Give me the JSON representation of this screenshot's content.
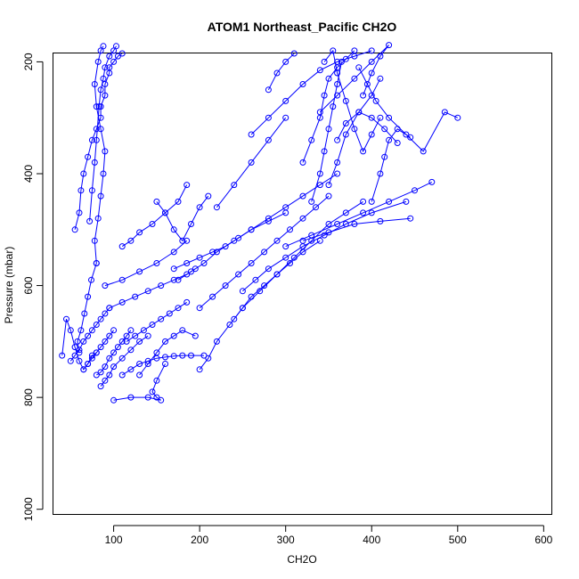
{
  "chart_data": {
    "type": "line",
    "title": "ATOM1 Northeast_Pacific CH2O",
    "xlabel": "CH2O",
    "ylabel": "Pressure (mbar)",
    "xlim": [
      30,
      610
    ],
    "ylim": [
      1010,
      185
    ],
    "x_ticks": [
      100,
      200,
      300,
      400,
      500,
      600
    ],
    "y_ticks": [
      200,
      400,
      600,
      800,
      1000
    ],
    "color": "#0000ff",
    "marker": "open-circle",
    "grid": false,
    "series": [
      {
        "x": [
          55,
          60,
          62,
          65,
          70,
          75,
          80,
          85,
          85,
          90,
          90,
          95,
          95,
          100,
          105,
          110
        ],
        "y": [
          500,
          470,
          430,
          400,
          370,
          340,
          320,
          300,
          280,
          260,
          240,
          220,
          210,
          200,
          190,
          185
        ]
      },
      {
        "x": [
          72,
          75,
          78,
          80,
          83,
          85,
          88,
          90,
          95,
          100,
          103
        ],
        "y": [
          485,
          430,
          380,
          340,
          280,
          250,
          230,
          210,
          190,
          180,
          172
        ]
      },
      {
        "x": [
          80,
          78,
          82,
          85,
          88,
          90,
          85,
          80,
          78,
          82,
          85,
          88
        ],
        "y": [
          560,
          520,
          480,
          440,
          400,
          360,
          320,
          280,
          240,
          200,
          180,
          172
        ]
      },
      {
        "x": [
          60,
          58,
          62,
          66,
          70,
          74,
          80
        ],
        "y": [
          720,
          700,
          680,
          650,
          620,
          590,
          560
        ]
      },
      {
        "x": [
          40,
          45,
          50,
          55,
          60,
          65,
          70,
          75,
          80
        ],
        "y": [
          725,
          660,
          680,
          710,
          735,
          750,
          740,
          725,
          720
        ]
      },
      {
        "x": [
          50,
          55,
          60,
          65,
          70,
          75,
          80,
          85,
          90,
          95
        ],
        "y": [
          735,
          725,
          715,
          700,
          690,
          680,
          670,
          660,
          650,
          640
        ]
      },
      {
        "x": [
          65,
          70,
          75,
          80,
          85,
          90,
          95,
          100
        ],
        "y": [
          750,
          740,
          730,
          720,
          710,
          700,
          690,
          680
        ]
      },
      {
        "x": [
          80,
          85,
          90,
          95,
          100,
          105,
          110,
          115,
          120
        ],
        "y": [
          760,
          755,
          745,
          730,
          720,
          710,
          700,
          690,
          680
        ]
      },
      {
        "x": [
          85,
          90,
          95,
          100,
          110,
          120,
          130,
          140
        ],
        "y": [
          780,
          770,
          760,
          745,
          730,
          715,
          700,
          690
        ]
      },
      {
        "x": [
          100,
          120,
          140,
          155,
          150,
          145,
          150,
          160
        ],
        "y": [
          805,
          800,
          800,
          805,
          800,
          790,
          770,
          740
        ]
      },
      {
        "x": [
          110,
          120,
          130,
          140,
          150,
          160,
          170,
          180,
          190,
          205
        ],
        "y": [
          760,
          750,
          740,
          735,
          730,
          728,
          726,
          725,
          725,
          725
        ]
      },
      {
        "x": [
          130,
          140,
          150,
          160,
          170,
          180,
          195
        ],
        "y": [
          760,
          740,
          720,
          700,
          690,
          680,
          690
        ]
      },
      {
        "x": [
          115,
          125,
          135,
          145,
          155,
          165,
          175,
          185
        ],
        "y": [
          700,
          690,
          680,
          670,
          660,
          650,
          640,
          630
        ]
      },
      {
        "x": [
          95,
          110,
          125,
          140,
          155,
          170,
          185,
          195
        ],
        "y": [
          640,
          630,
          620,
          610,
          600,
          590,
          580,
          570
        ]
      },
      {
        "x": [
          90,
          110,
          130,
          150,
          170,
          185
        ],
        "y": [
          600,
          590,
          575,
          560,
          540,
          520
        ]
      },
      {
        "x": [
          110,
          120,
          130,
          145,
          160,
          175,
          185
        ],
        "y": [
          530,
          520,
          505,
          490,
          470,
          450,
          420
        ]
      },
      {
        "x": [
          150,
          160,
          170,
          180,
          190,
          200,
          210
        ],
        "y": [
          450,
          470,
          500,
          520,
          490,
          460,
          440
        ]
      },
      {
        "x": [
          170,
          185,
          200,
          215,
          230,
          245,
          260,
          280,
          300
        ],
        "y": [
          570,
          560,
          550,
          540,
          530,
          515,
          500,
          485,
          470
        ]
      },
      {
        "x": [
          175,
          190,
          205,
          220,
          240,
          260,
          280,
          300,
          320,
          340,
          360
        ],
        "y": [
          590,
          575,
          560,
          540,
          520,
          500,
          480,
          460,
          440,
          420,
          400
        ]
      },
      {
        "x": [
          200,
          215,
          230,
          245,
          260,
          275,
          290,
          305,
          320,
          335,
          350
        ],
        "y": [
          640,
          620,
          600,
          580,
          560,
          540,
          520,
          500,
          480,
          460,
          440
        ]
      },
      {
        "x": [
          200,
          210,
          220,
          235,
          250,
          270,
          290,
          310,
          330,
          350,
          370,
          390
        ],
        "y": [
          750,
          730,
          700,
          670,
          640,
          610,
          580,
          550,
          520,
          490,
          470,
          450
        ]
      },
      {
        "x": [
          240,
          250,
          260,
          275,
          290,
          305,
          320,
          340
        ],
        "y": [
          660,
          640,
          620,
          600,
          580,
          560,
          540,
          520
        ]
      },
      {
        "x": [
          250,
          265,
          280,
          300,
          320,
          345,
          370,
          400,
          440
        ],
        "y": [
          610,
          590,
          570,
          550,
          530,
          510,
          490,
          470,
          450
        ]
      },
      {
        "x": [
          300,
          330,
          360,
          390,
          420,
          450,
          470
        ],
        "y": [
          530,
          510,
          490,
          470,
          450,
          430,
          415
        ]
      },
      {
        "x": [
          320,
          350,
          380,
          410,
          445
        ],
        "y": [
          520,
          505,
          490,
          485,
          480
        ]
      },
      {
        "x": [
          260,
          280,
          300,
          320,
          340,
          360,
          380,
          400
        ],
        "y": [
          330,
          300,
          270,
          240,
          215,
          200,
          190,
          180
        ]
      },
      {
        "x": [
          220,
          240,
          260,
          280,
          300
        ],
        "y": [
          460,
          420,
          380,
          340,
          300
        ]
      },
      {
        "x": [
          280,
          290,
          300,
          310
        ],
        "y": [
          250,
          220,
          200,
          185
        ]
      },
      {
        "x": [
          320,
          330,
          340,
          345,
          350,
          360,
          370,
          380
        ],
        "y": [
          380,
          340,
          300,
          260,
          230,
          210,
          195,
          180
        ]
      },
      {
        "x": [
          330,
          340,
          345,
          350,
          355,
          360,
          365
        ],
        "y": [
          450,
          400,
          360,
          320,
          280,
          240,
          200
        ]
      },
      {
        "x": [
          345,
          355,
          360,
          370,
          380,
          390,
          400,
          410
        ],
        "y": [
          200,
          180,
          220,
          270,
          320,
          360,
          330,
          300
        ]
      },
      {
        "x": [
          385,
          395,
          405,
          420,
          440,
          460,
          485,
          500
        ],
        "y": [
          210,
          240,
          270,
          300,
          330,
          360,
          290,
          300
        ]
      },
      {
        "x": [
          390,
          400,
          410,
          420,
          400,
          380,
          360,
          340
        ],
        "y": [
          260,
          220,
          190,
          170,
          200,
          230,
          260,
          290
        ]
      },
      {
        "x": [
          400,
          410,
          415,
          420,
          430,
          445
        ],
        "y": [
          450,
          400,
          370,
          340,
          320,
          335
        ]
      },
      {
        "x": [
          360,
          370,
          385,
          400,
          415,
          430
        ],
        "y": [
          340,
          310,
          290,
          300,
          320,
          345
        ]
      },
      {
        "x": [
          350,
          360,
          370,
          385,
          400,
          410
        ],
        "y": [
          420,
          380,
          330,
          290,
          260,
          230
        ]
      }
    ]
  }
}
